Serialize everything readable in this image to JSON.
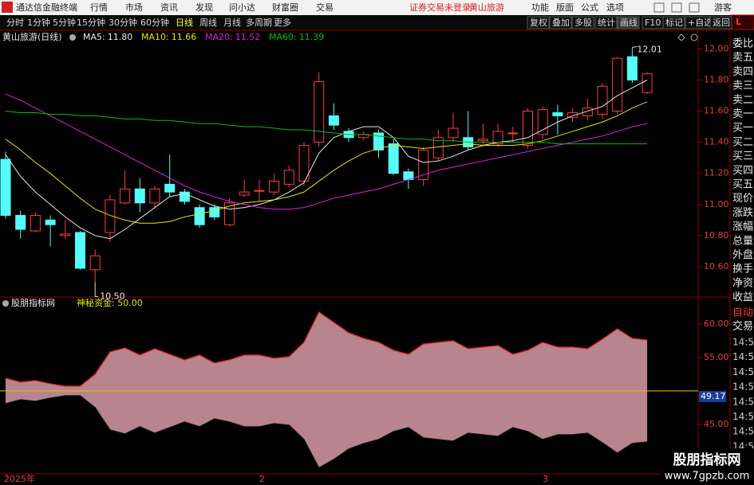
{
  "header": {
    "app_name": "通达信金融终端",
    "menu": [
      "行情",
      "市场",
      "资讯",
      "发现",
      "问小达",
      "财富圈",
      "交易"
    ],
    "notice": "证券交易未登录",
    "stock": "黄山旅游",
    "tools": [
      "功能",
      "版面",
      "公式",
      "选项"
    ],
    "user": "游客"
  },
  "toolbar": {
    "periods": [
      "分时",
      "1分钟",
      "5分钟",
      "15分钟",
      "30分钟",
      "60分钟",
      "日线",
      "周线",
      "月线",
      "多周期",
      "更多"
    ],
    "buttons": [
      "复权",
      "叠加",
      "多股",
      "统计",
      "画线",
      "F10",
      "标记",
      "+自选",
      "返回"
    ]
  },
  "sidebar": {
    "badge": "L",
    "fields": [
      "委比",
      "卖五",
      "卖四",
      "卖三",
      "卖二",
      "卖一",
      "买一",
      "买二",
      "买三",
      "买四",
      "买五",
      "现价",
      "涨跌",
      "涨幅",
      "总量",
      "外盘",
      "换手",
      "净资",
      "收益"
    ],
    "auto": "自动",
    "trade": "交易",
    "times": [
      "14:56",
      "14:56",
      "14:56",
      "14:56",
      "14:56",
      "14:56",
      "14:56",
      "14:56",
      "14:56"
    ]
  },
  "watermark": {
    "title": "股朋指标网",
    "url": "www.7gpzb.com"
  },
  "chart_data": [
    {
      "type": "candlestick",
      "title": "黄山旅游(日线)",
      "separator": ":",
      "categories": [
        "2025年",
        null,
        null,
        null,
        null,
        null,
        null,
        null,
        null,
        null,
        null,
        null,
        null,
        null,
        null,
        null,
        null,
        "2",
        null,
        null,
        null,
        null,
        null,
        null,
        null,
        null,
        null,
        null,
        null,
        null,
        null,
        null,
        null,
        null,
        null,
        null,
        "3",
        null,
        null,
        null,
        null,
        null,
        null,
        null
      ],
      "open": [
        11.29,
        10.93,
        10.83,
        10.9,
        10.8,
        10.82,
        10.58,
        10.82,
        11.01,
        11.1,
        11.01,
        11.13,
        11.08,
        10.98,
        10.98,
        10.87,
        11.06,
        11.09,
        11.08,
        11.13,
        11.15,
        11.4,
        11.57,
        11.47,
        11.43,
        11.46,
        11.39,
        11.21,
        11.16,
        11.3,
        11.43,
        11.43,
        11.41,
        11.39,
        11.46,
        11.38,
        11.45,
        11.59,
        11.56,
        11.57,
        11.58,
        11.6,
        11.95,
        11.72
      ],
      "close": [
        10.93,
        10.84,
        10.93,
        10.87,
        10.81,
        10.59,
        10.67,
        11.03,
        11.1,
        11.01,
        11.1,
        11.08,
        11.02,
        10.87,
        10.92,
        11.01,
        11.08,
        11.09,
        11.15,
        11.22,
        11.38,
        11.79,
        11.51,
        11.43,
        11.45,
        11.35,
        11.2,
        11.16,
        11.35,
        11.43,
        11.49,
        11.37,
        11.42,
        11.47,
        11.46,
        11.6,
        11.61,
        11.57,
        11.59,
        11.62,
        11.76,
        11.94,
        11.8,
        11.84
      ],
      "high": [
        11.34,
        10.96,
        10.95,
        10.93,
        10.9,
        10.83,
        10.71,
        11.06,
        11.22,
        11.17,
        11.12,
        11.32,
        11.1,
        11.0,
        11.0,
        11.04,
        11.16,
        11.16,
        11.2,
        11.25,
        11.4,
        11.85,
        11.65,
        11.49,
        11.47,
        11.48,
        11.42,
        11.23,
        11.37,
        11.48,
        11.59,
        11.6,
        11.52,
        11.52,
        11.5,
        11.62,
        11.63,
        11.64,
        11.62,
        11.68,
        11.78,
        11.95,
        12.01,
        11.85
      ],
      "low": [
        10.91,
        10.78,
        10.82,
        10.73,
        10.78,
        10.58,
        10.5,
        10.76,
        11.0,
        10.95,
        10.98,
        11.05,
        11.0,
        10.85,
        10.9,
        10.86,
        11.05,
        11.02,
        11.06,
        11.11,
        11.12,
        11.37,
        11.48,
        11.4,
        11.41,
        11.3,
        11.19,
        11.1,
        11.12,
        11.28,
        11.4,
        11.35,
        11.37,
        11.37,
        11.4,
        11.36,
        11.42,
        11.45,
        11.53,
        11.54,
        11.55,
        11.58,
        11.78,
        11.71
      ],
      "up_color": "#ff3c3c",
      "down_color": "#54fcfc",
      "series": [
        {
          "name": "MA5",
          "latest_label": "11.80",
          "color": "#e8e8e8",
          "values": [
            11.32,
            11.18,
            11.08,
            11.0,
            10.92,
            10.85,
            10.8,
            10.78,
            10.84,
            10.91,
            10.98,
            11.05,
            11.07,
            11.03,
            10.99,
            10.97,
            10.98,
            11.0,
            11.03,
            11.08,
            11.14,
            11.33,
            11.43,
            11.47,
            11.5,
            11.5,
            11.43,
            11.31,
            11.27,
            11.28,
            11.31,
            11.35,
            11.38,
            11.4,
            11.41,
            11.43,
            11.48,
            11.53,
            11.57,
            11.6,
            11.63,
            11.7,
            11.75,
            11.8
          ]
        },
        {
          "name": "MA10",
          "latest_label": "11.66",
          "color": "#e6e600",
          "values": [
            11.42,
            11.35,
            11.27,
            11.2,
            11.12,
            11.04,
            10.97,
            10.93,
            10.9,
            10.88,
            10.88,
            10.89,
            10.92,
            10.94,
            10.96,
            10.99,
            11.01,
            11.02,
            11.03,
            11.05,
            11.08,
            11.15,
            11.22,
            11.28,
            11.33,
            11.36,
            11.38,
            11.37,
            11.36,
            11.37,
            11.38,
            11.39,
            11.38,
            11.38,
            11.38,
            11.39,
            11.41,
            11.44,
            11.47,
            11.5,
            11.53,
            11.57,
            11.62,
            11.66
          ]
        },
        {
          "name": "MA20",
          "latest_label": "11.52",
          "color": "#e020e0",
          "values": [
            11.71,
            11.67,
            11.62,
            11.57,
            11.52,
            11.47,
            11.42,
            11.37,
            11.32,
            11.27,
            11.22,
            11.17,
            11.12,
            11.08,
            11.05,
            11.02,
            11.0,
            10.98,
            10.97,
            10.97,
            10.98,
            11.01,
            11.04,
            11.06,
            11.08,
            11.1,
            11.13,
            11.16,
            11.19,
            11.22,
            11.24,
            11.26,
            11.28,
            11.3,
            11.32,
            11.34,
            11.36,
            11.38,
            11.4,
            11.42,
            11.44,
            11.47,
            11.5,
            11.52
          ]
        },
        {
          "name": "MA60",
          "latest_label": "11.39",
          "color": "#00c000",
          "values": [
            11.6,
            11.59,
            11.59,
            11.58,
            11.58,
            11.57,
            11.57,
            11.56,
            11.55,
            11.55,
            11.54,
            11.54,
            11.53,
            11.52,
            11.52,
            11.51,
            11.5,
            11.5,
            11.49,
            11.48,
            11.48,
            11.47,
            11.46,
            11.45,
            11.45,
            11.44,
            11.43,
            11.42,
            11.42,
            11.41,
            11.41,
            11.4,
            11.4,
            11.4,
            11.4,
            11.4,
            11.4,
            11.39,
            11.39,
            11.39,
            11.39,
            11.39,
            11.39,
            11.39
          ]
        }
      ],
      "annotations": [
        {
          "label": "12.01",
          "value": 12.01,
          "field": "high"
        },
        {
          "label": "10.50",
          "value": 10.5,
          "field": "low"
        }
      ],
      "ylim": [
        10.41,
        12.12
      ],
      "yticks": [
        {
          "value": 12,
          "label": "12.00"
        },
        {
          "value": 11.8,
          "label": "11.80"
        },
        {
          "value": 11.6,
          "label": "11.60"
        },
        {
          "value": 11.4,
          "label": "11.40"
        },
        {
          "value": 11.2,
          "label": "11.20"
        },
        {
          "value": 11,
          "label": "11.00"
        },
        {
          "value": 10.8,
          "label": "10.80"
        },
        {
          "value": 10.6,
          "label": "10.60"
        }
      ]
    },
    {
      "type": "band",
      "title": "股朋指标网",
      "indicator": "神秘资金",
      "separator": ":",
      "value": 50,
      "value_label": "50.00",
      "line_color": "#e6c600",
      "fill": "#b8848e",
      "series": [
        {
          "color": "#e02020",
          "values": [
            51.9,
            51.31,
            51.55,
            51.07,
            50.71,
            50.71,
            52.5,
            55.83,
            56.43,
            55.36,
            56.31,
            55.48,
            54.64,
            55.36,
            54.17,
            54.64,
            55.36,
            55.36,
            54.88,
            55.12,
            57.26,
            61.79,
            60.24,
            58.69,
            57.86,
            57.26,
            56.07,
            55.48,
            57.02,
            57.26,
            57.5,
            56.31,
            56.55,
            56.79,
            55.48,
            56.07,
            57.26,
            56.55,
            56.55,
            56.31,
            57.74,
            59.29,
            57.86,
            57.62
          ]
        },
        {
          "color": "#101010",
          "values": [
            48.1,
            48.69,
            48.45,
            48.93,
            49.29,
            49.29,
            47.5,
            44.17,
            43.57,
            44.64,
            43.69,
            44.52,
            45.36,
            44.64,
            45.83,
            45.36,
            44.64,
            44.64,
            45.12,
            44.88,
            42.74,
            38.5,
            39.76,
            41.31,
            42.14,
            42.74,
            43.93,
            44.52,
            42.98,
            42.74,
            42.5,
            43.69,
            43.45,
            43.21,
            44.52,
            43.93,
            42.74,
            43.45,
            43.45,
            43.69,
            42.26,
            40.71,
            42.14,
            42.38
          ]
        }
      ],
      "current": {
        "value": 49.17,
        "label": "49.17"
      },
      "ylim": [
        37.6,
        63.8
      ],
      "yticks": [
        {
          "value": 60,
          "label": "60.00"
        },
        {
          "value": 55,
          "label": "55.00"
        },
        {
          "value": 45,
          "label": "45.00"
        }
      ]
    }
  ]
}
